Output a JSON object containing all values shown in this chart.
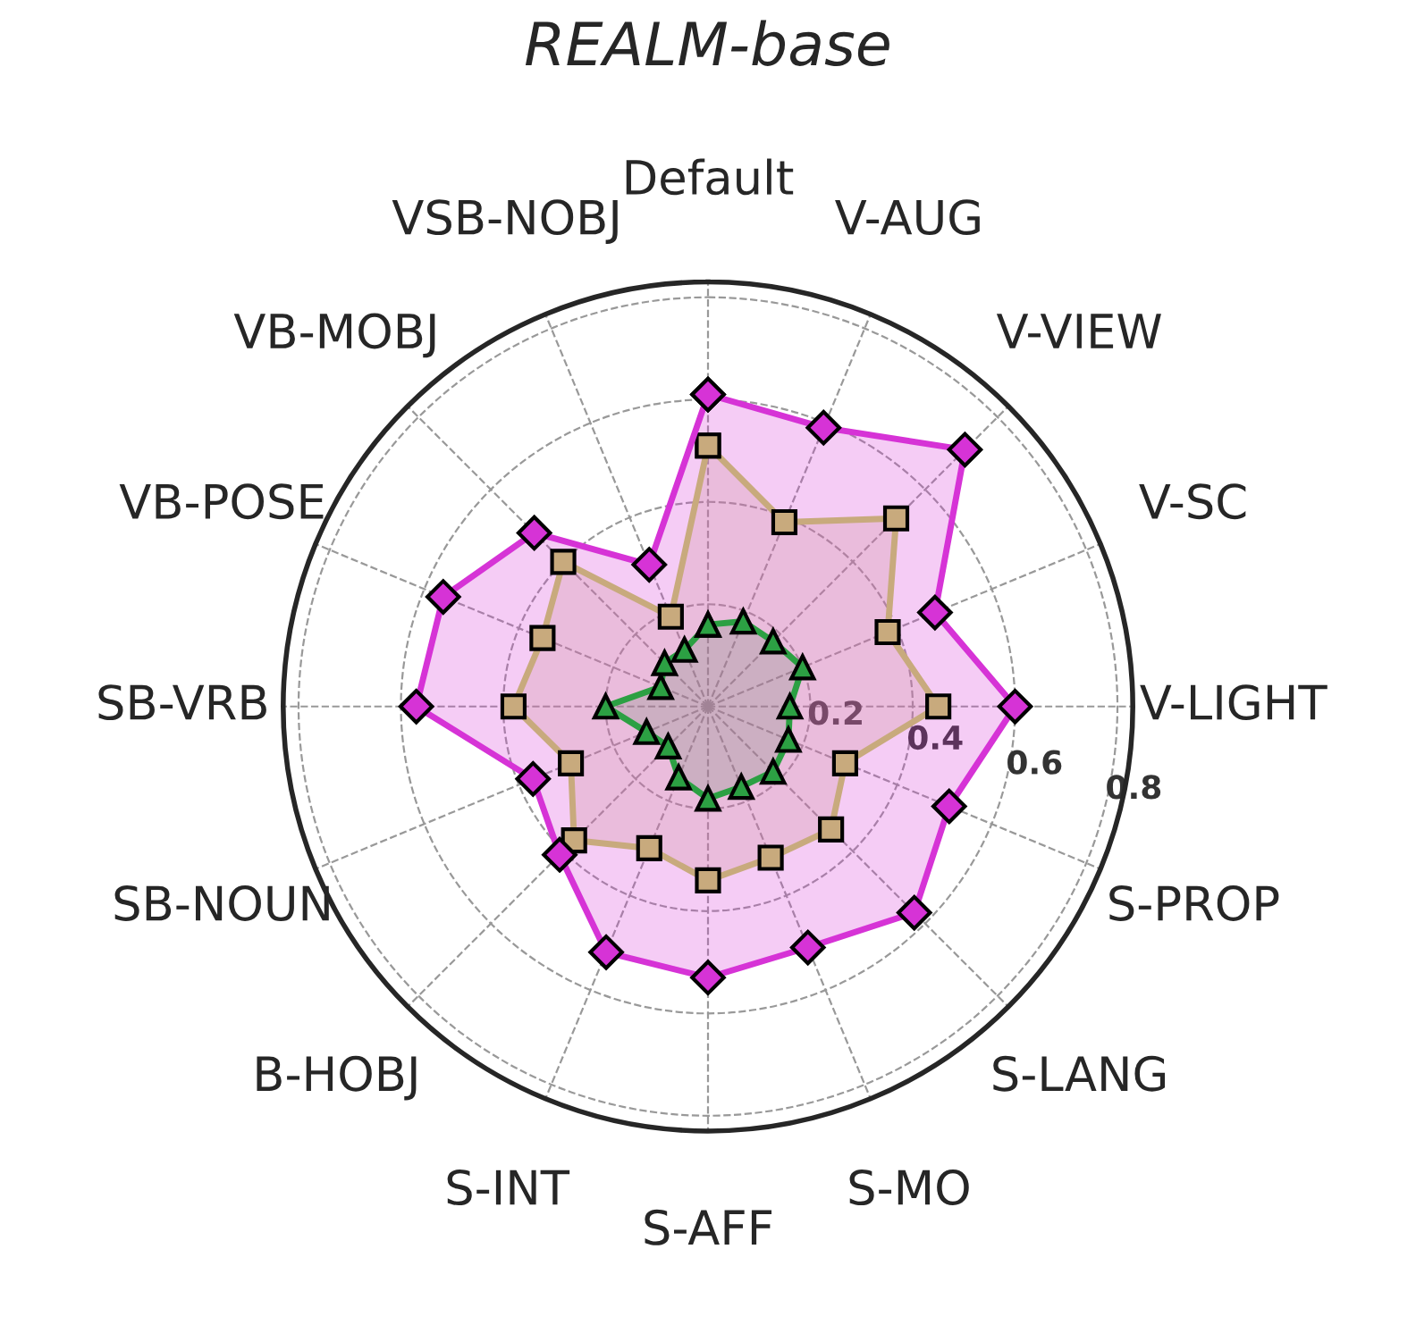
{
  "chart_data": {
    "type": "radar",
    "title": "REALM-base",
    "categories": [
      "Default",
      "V-AUG",
      "V-VIEW",
      "V-SC",
      "V-LIGHT",
      "S-PROP",
      "S-LANG",
      "S-MO",
      "S-AFF",
      "S-INT",
      "B-HOBJ",
      "SB-NOUN",
      "SB-VRB",
      "VB-POSE",
      "VB-MOBJ",
      "VSB-NOBJ"
    ],
    "series": [
      {
        "color": "#2ca043",
        "marker": "triangle",
        "values": [
          0.16,
          0.18,
          0.18,
          0.2,
          0.16,
          0.17,
          0.18,
          0.17,
          0.18,
          0.15,
          0.11,
          0.13,
          0.2,
          0.1,
          0.12,
          0.12
        ]
      },
      {
        "color": "#c8aa7d",
        "marker": "square",
        "values": [
          0.51,
          0.39,
          0.52,
          0.38,
          0.45,
          0.29,
          0.34,
          0.32,
          0.34,
          0.3,
          0.37,
          0.29,
          0.38,
          0.35,
          0.4,
          0.19
        ]
      },
      {
        "color": "#d633d6",
        "marker": "diamond",
        "values": [
          0.61,
          0.59,
          0.71,
          0.48,
          0.6,
          0.51,
          0.57,
          0.51,
          0.53,
          0.52,
          0.41,
          0.37,
          0.57,
          0.56,
          0.48,
          0.3
        ]
      }
    ],
    "ylim": [
      0,
      0.83
    ],
    "yticks": [
      0.2,
      0.4,
      0.6,
      0.8
    ],
    "grid": true
  }
}
